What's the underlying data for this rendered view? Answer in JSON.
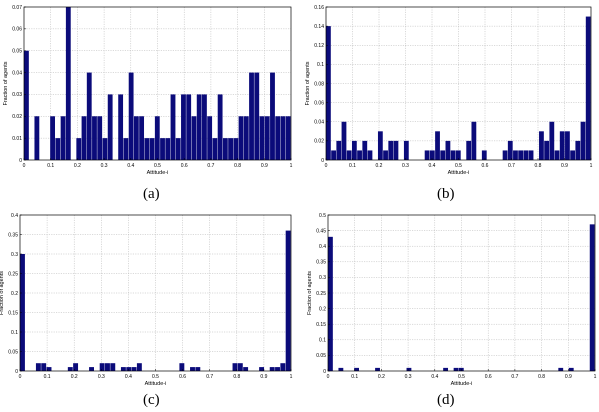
{
  "chart_data": [
    {
      "type": "bar",
      "caption": "(a)",
      "xlabel": "Attitude-i",
      "ylabel": "Fraction of agents",
      "xlim": [
        0,
        1
      ],
      "ylim": [
        0,
        0.07
      ],
      "xticks": [
        "0",
        "0.1",
        "0.2",
        "0.3",
        "0.4",
        "0.5",
        "0.6",
        "0.7",
        "0.8",
        "0.9",
        "1"
      ],
      "yticks": [
        "0",
        "0.01",
        "0.02",
        "0.03",
        "0.04",
        "0.05",
        "0.06",
        "0.07"
      ],
      "grid": true,
      "bin_width": 0.0196,
      "x": [
        0,
        0.0196,
        0.0392,
        0.0588,
        0.0784,
        0.098,
        0.1176,
        0.1373,
        0.1569,
        0.1765,
        0.1961,
        0.2157,
        0.2353,
        0.2549,
        0.2745,
        0.2941,
        0.3137,
        0.3333,
        0.3529,
        0.3725,
        0.3922,
        0.4118,
        0.4314,
        0.451,
        0.4706,
        0.4902,
        0.5098,
        0.5294,
        0.549,
        0.5686,
        0.5882,
        0.6078,
        0.6275,
        0.6471,
        0.6667,
        0.6863,
        0.7059,
        0.7255,
        0.7451,
        0.7647,
        0.7843,
        0.8039,
        0.8235,
        0.8431,
        0.8627,
        0.8824,
        0.902,
        0.9216,
        0.9412,
        0.9608,
        0.9804
      ],
      "values": [
        0.05,
        0,
        0.02,
        0,
        0,
        0.02,
        0.01,
        0.02,
        0.07,
        0,
        0.01,
        0.02,
        0.04,
        0.02,
        0.02,
        0.01,
        0.03,
        0,
        0.03,
        0.01,
        0.04,
        0.02,
        0.02,
        0.01,
        0.01,
        0.02,
        0.01,
        0.01,
        0.03,
        0.01,
        0.03,
        0.03,
        0.02,
        0.03,
        0.03,
        0.02,
        0.01,
        0.03,
        0.01,
        0.01,
        0.01,
        0.02,
        0.02,
        0.04,
        0.04,
        0.02,
        0.02,
        0.04,
        0.02,
        0.02,
        0.02
      ]
    },
    {
      "type": "bar",
      "caption": "(b)",
      "xlabel": "Attitude-i",
      "ylabel": "Fraction of agents",
      "xlim": [
        0,
        1
      ],
      "ylim": [
        0,
        0.16
      ],
      "xticks": [
        "0",
        "0.1",
        "0.2",
        "0.3",
        "0.4",
        "0.5",
        "0.6",
        "0.7",
        "0.8",
        "0.9",
        "1"
      ],
      "yticks": [
        "0",
        "0.02",
        "0.04",
        "0.06",
        "0.08",
        "0.1",
        "0.12",
        "0.14",
        "0.16"
      ],
      "grid": true,
      "bin_width": 0.0196,
      "x": [
        0,
        0.0196,
        0.0392,
        0.0588,
        0.0784,
        0.098,
        0.1176,
        0.1373,
        0.1569,
        0.1765,
        0.1961,
        0.2157,
        0.2353,
        0.2549,
        0.2745,
        0.2941,
        0.3137,
        0.3333,
        0.3529,
        0.3725,
        0.3922,
        0.4118,
        0.4314,
        0.451,
        0.4706,
        0.4902,
        0.5098,
        0.5294,
        0.549,
        0.5686,
        0.5882,
        0.6078,
        0.6275,
        0.6471,
        0.6667,
        0.6863,
        0.7059,
        0.7255,
        0.7451,
        0.7647,
        0.7843,
        0.8039,
        0.8235,
        0.8431,
        0.8627,
        0.8824,
        0.902,
        0.9216,
        0.9412,
        0.9608,
        0.9804
      ],
      "values": [
        0.14,
        0.01,
        0.02,
        0.04,
        0.01,
        0.02,
        0.01,
        0.02,
        0.01,
        0,
        0.03,
        0.01,
        0.02,
        0.02,
        0,
        0.02,
        0,
        0,
        0,
        0.01,
        0.01,
        0.03,
        0.01,
        0.02,
        0.01,
        0.01,
        0,
        0.02,
        0.04,
        0,
        0.01,
        0,
        0,
        0,
        0.01,
        0.02,
        0.01,
        0.01,
        0.01,
        0.01,
        0,
        0.03,
        0.02,
        0.04,
        0.01,
        0.03,
        0.03,
        0.01,
        0.02,
        0.04,
        0.15
      ]
    },
    {
      "type": "bar",
      "caption": "(c)",
      "xlabel": "Attitude-i",
      "ylabel": "Fraction of agents",
      "xlim": [
        0,
        1
      ],
      "ylim": [
        0,
        0.4
      ],
      "xticks": [
        "0",
        "0.1",
        "0.2",
        "0.3",
        "0.4",
        "0.5",
        "0.6",
        "0.7",
        "0.8",
        "0.9",
        "1"
      ],
      "yticks": [
        "0",
        "0.05",
        "0.1",
        "0.15",
        "0.2",
        "0.25",
        "0.3",
        "0.35",
        "0.4"
      ],
      "grid": true,
      "bin_width": 0.0196,
      "x": [
        0,
        0.0196,
        0.0392,
        0.0588,
        0.0784,
        0.098,
        0.1176,
        0.1373,
        0.1569,
        0.1765,
        0.1961,
        0.2157,
        0.2353,
        0.2549,
        0.2745,
        0.2941,
        0.3137,
        0.3333,
        0.3529,
        0.3725,
        0.3922,
        0.4118,
        0.4314,
        0.451,
        0.4706,
        0.4902,
        0.5098,
        0.5294,
        0.549,
        0.5686,
        0.5882,
        0.6078,
        0.6275,
        0.6471,
        0.6667,
        0.6863,
        0.7059,
        0.7255,
        0.7451,
        0.7647,
        0.7843,
        0.8039,
        0.8235,
        0.8431,
        0.8627,
        0.8824,
        0.902,
        0.9216,
        0.9412,
        0.9608,
        0.9804
      ],
      "values": [
        0.3,
        0,
        0,
        0.02,
        0.02,
        0.01,
        0,
        0,
        0,
        0.01,
        0.02,
        0,
        0,
        0.01,
        0,
        0.02,
        0.02,
        0.02,
        0,
        0.01,
        0.01,
        0.01,
        0.02,
        0,
        0,
        0,
        0,
        0,
        0,
        0,
        0.02,
        0,
        0.01,
        0.01,
        0,
        0,
        0,
        0,
        0,
        0,
        0.02,
        0.02,
        0.01,
        0,
        0,
        0.01,
        0,
        0.01,
        0.01,
        0.02,
        0.36
      ]
    },
    {
      "type": "bar",
      "caption": "(d)",
      "xlabel": "Attitude-i",
      "ylabel": "Fraction of agents",
      "xlim": [
        0,
        1
      ],
      "ylim": [
        0,
        0.5
      ],
      "xticks": [
        "0",
        "0.1",
        "0.2",
        "0.3",
        "0.4",
        "0.5",
        "0.6",
        "0.7",
        "0.8",
        "0.9",
        "1"
      ],
      "yticks": [
        "0",
        "0.05",
        "0.1",
        "0.15",
        "0.2",
        "0.25",
        "0.3",
        "0.35",
        "0.4",
        "0.45",
        "0.5"
      ],
      "grid": true,
      "bin_width": 0.0196,
      "x": [
        0,
        0.0196,
        0.0392,
        0.0588,
        0.0784,
        0.098,
        0.1176,
        0.1373,
        0.1569,
        0.1765,
        0.1961,
        0.2157,
        0.2353,
        0.2549,
        0.2745,
        0.2941,
        0.3137,
        0.3333,
        0.3529,
        0.3725,
        0.3922,
        0.4118,
        0.4314,
        0.451,
        0.4706,
        0.4902,
        0.5098,
        0.5294,
        0.549,
        0.5686,
        0.5882,
        0.6078,
        0.6275,
        0.6471,
        0.6667,
        0.6863,
        0.7059,
        0.7255,
        0.7451,
        0.7647,
        0.7843,
        0.8039,
        0.8235,
        0.8431,
        0.8627,
        0.8824,
        0.902,
        0.9216,
        0.9412,
        0.9608,
        0.9804
      ],
      "values": [
        0.43,
        0,
        0.01,
        0,
        0,
        0.01,
        0,
        0,
        0,
        0.01,
        0,
        0,
        0,
        0,
        0,
        0.01,
        0,
        0,
        0,
        0,
        0,
        0,
        0.01,
        0,
        0.01,
        0.01,
        0,
        0,
        0,
        0,
        0,
        0,
        0,
        0,
        0,
        0,
        0,
        0,
        0,
        0,
        0,
        0,
        0,
        0,
        0.01,
        0,
        0.01,
        0,
        0,
        0,
        0.47
      ]
    }
  ],
  "colors": {
    "bar": "#0b0b7a",
    "grid": "#b5b5b5",
    "axis": "#000000"
  }
}
